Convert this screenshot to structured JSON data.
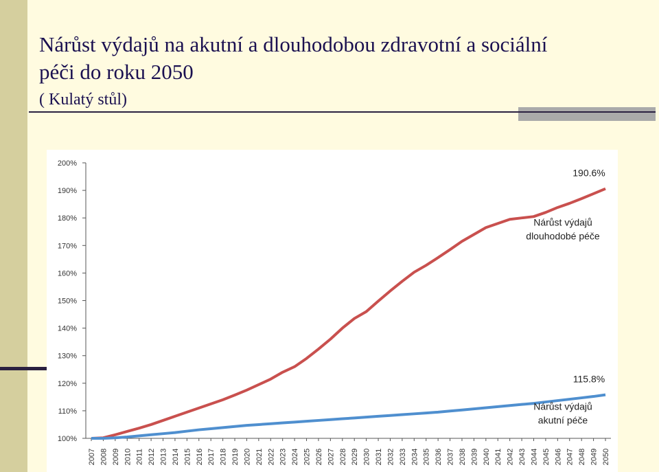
{
  "slide": {
    "title_lines": [
      "Nárůst výdajů na akutní a dlouhodobou zdravotní a sociální",
      "péči do roku 2050"
    ],
    "subtitle": "( Kulatý stůl)"
  },
  "chart_data": {
    "type": "line",
    "categories": [
      "2007",
      "2008",
      "2009",
      "2010",
      "2011",
      "2012",
      "2013",
      "2014",
      "2015",
      "2016",
      "2017",
      "2018",
      "2019",
      "2020",
      "2021",
      "2022",
      "2023",
      "2024",
      "2025",
      "2026",
      "2027",
      "2028",
      "2029",
      "2030",
      "2031",
      "2032",
      "2033",
      "2034",
      "2035",
      "2036",
      "2037",
      "2038",
      "2039",
      "2040",
      "2041",
      "2042",
      "2043",
      "2044",
      "2045",
      "2046",
      "2047",
      "2048",
      "2049",
      "2050"
    ],
    "series": [
      {
        "color": "#c9504e",
        "label_lines": [
          "Nárůst výdajů",
          "dlouhodobé péče"
        ],
        "end_label": "190.6%",
        "values": [
          100,
          100.2,
          101.3,
          102.5,
          103.7,
          105,
          106.5,
          108,
          109.5,
          111,
          112.5,
          114,
          115.7,
          117.5,
          119.5,
          121.5,
          124,
          126,
          129,
          132.4,
          136,
          140,
          143.5,
          146,
          149.8,
          153.5,
          157,
          160.3,
          162.8,
          165.6,
          168.5,
          171.5,
          174,
          176.5,
          178,
          179.5,
          180,
          180.5,
          182,
          183.8,
          185.3,
          187,
          188.8,
          190.6
        ]
      },
      {
        "color": "#4f8fcf",
        "label_lines": [
          "Nárůst výdajů",
          "akutní péče"
        ],
        "end_label": "115.8%",
        "values": [
          100,
          100,
          100.2,
          100.5,
          100.9,
          101.3,
          101.7,
          102.1,
          102.6,
          103.1,
          103.5,
          103.9,
          104.3,
          104.7,
          105,
          105.3,
          105.6,
          105.9,
          106.2,
          106.5,
          106.8,
          107.1,
          107.4,
          107.7,
          108,
          108.3,
          108.6,
          108.9,
          109.2,
          109.5,
          109.9,
          110.3,
          110.7,
          111.1,
          111.5,
          111.9,
          112.3,
          112.7,
          113.2,
          113.7,
          114.2,
          114.7,
          115.2,
          115.8
        ]
      }
    ],
    "ylim": [
      100,
      200
    ],
    "yticks": [
      {
        "value": 100,
        "label": "100%"
      },
      {
        "value": 110,
        "label": "110%"
      },
      {
        "value": 120,
        "label": "120%"
      },
      {
        "value": 130,
        "label": "130%"
      },
      {
        "value": 140,
        "label": "140%"
      },
      {
        "value": 150,
        "label": "150%"
      },
      {
        "value": 160,
        "label": "160%"
      },
      {
        "value": 170,
        "label": "170%"
      },
      {
        "value": 180,
        "label": "180%"
      },
      {
        "value": 190,
        "label": "190%"
      },
      {
        "value": 200,
        "label": "200%"
      }
    ]
  }
}
